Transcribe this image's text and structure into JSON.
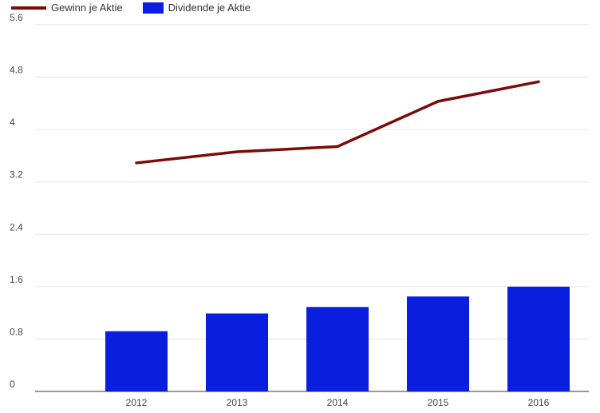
{
  "chart_data": {
    "type": "bar",
    "categories": [
      "2012",
      "2013",
      "2014",
      "2015",
      "2016"
    ],
    "series": [
      {
        "name": "Dividende je Aktie",
        "type": "bar",
        "color": "#0a1ee0",
        "values": [
          0.92,
          1.19,
          1.29,
          1.45,
          1.6
        ]
      },
      {
        "name": "Gewinn je Aktie",
        "type": "line",
        "color": "#7b0a0a",
        "values": [
          3.49,
          3.66,
          3.74,
          4.43,
          4.73
        ]
      }
    ],
    "yticks": [
      "0",
      "0.8",
      "1.6",
      "2.4",
      "3.2",
      "4",
      "4.8",
      "5.6"
    ],
    "ylim": [
      0,
      5.6
    ],
    "grid": true,
    "legend_position": "top-left"
  }
}
